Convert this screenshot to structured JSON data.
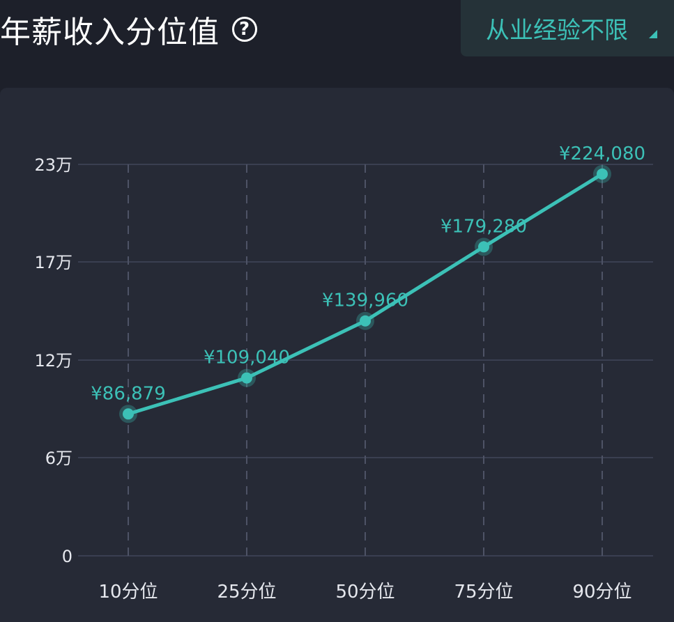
{
  "header": {
    "title": "年薪收入分位值",
    "help_icon": "question-circle-icon",
    "filter_label": "从业经验不限"
  },
  "colors": {
    "background": "#1d202a",
    "panel": "#262a36",
    "accent": "#3cc1b7",
    "axis_text": "#e6e8ee"
  },
  "chart_data": {
    "type": "line",
    "title": "",
    "xlabel": "",
    "ylabel": "",
    "categories": [
      "10分位",
      "25分位",
      "50分位",
      "75分位",
      "90分位"
    ],
    "series": [
      {
        "values": [
          86879,
          109040,
          139960,
          179280,
          224080
        ],
        "labels": [
          "¥86,879",
          "¥109,040",
          "¥139,960",
          "¥179,280",
          "¥224,080"
        ]
      }
    ],
    "y_ticks": [
      {
        "value": 0,
        "label": "0"
      },
      {
        "value": 60000,
        "label": "6万"
      },
      {
        "value": 120000,
        "label": "12万"
      },
      {
        "value": 170000,
        "label": "17万"
      },
      {
        "value": 230000,
        "label": "23万"
      }
    ],
    "ylim": [
      0,
      230000
    ],
    "grid": true
  }
}
